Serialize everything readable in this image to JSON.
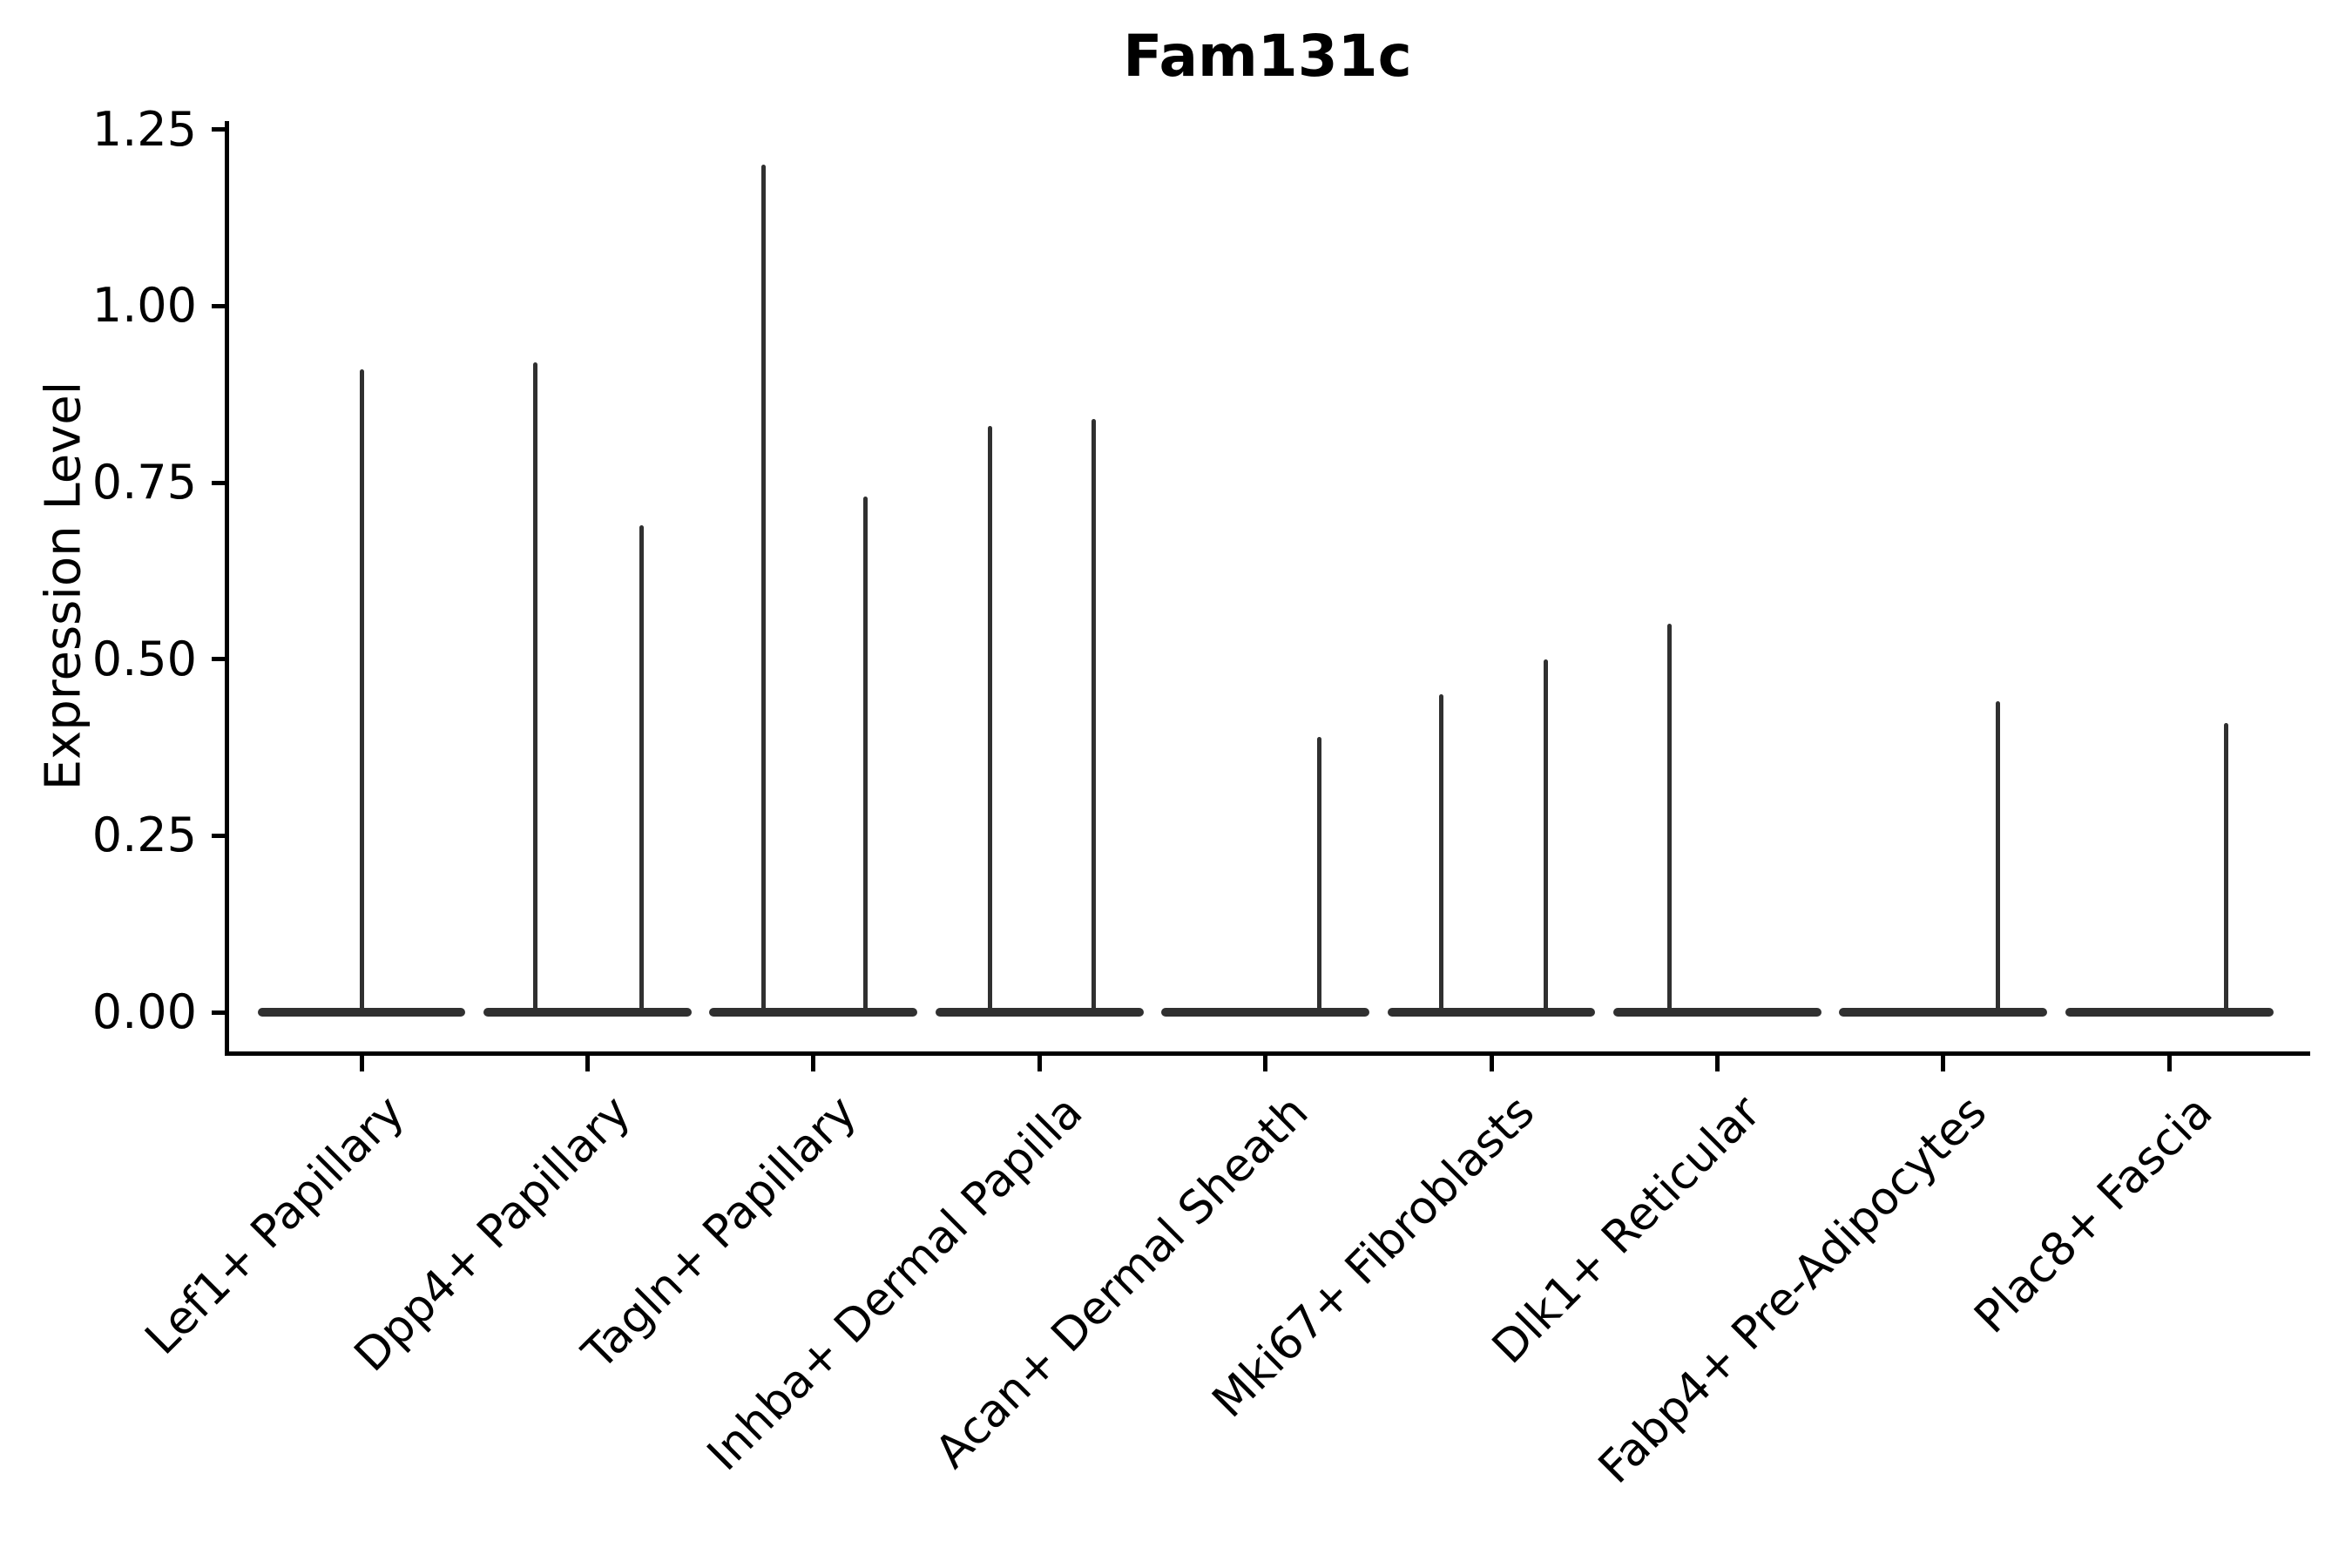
{
  "title": "Fam131c",
  "axes": {
    "ylabel": "Expression Level"
  },
  "chart_data": {
    "type": "violin",
    "title": "Fam131c",
    "xlabel": "",
    "ylabel": "Expression Level",
    "ylim": [
      -0.05,
      1.26
    ],
    "grid": false,
    "legend": "none",
    "yticks": [
      0,
      0.25,
      0.5,
      0.75,
      1.0,
      1.25
    ],
    "ytick_labels": [
      "0.00",
      "0.25",
      "0.50",
      "0.75",
      "1.00",
      "1.25"
    ],
    "categories": [
      "Lef1+ Papillary",
      "Dpp4+ Papillary",
      "Tagln+ Papillary",
      "Inhba+ Dermal Papilla",
      "Acan+ Dermal Sheath",
      "Mki67+ Fibroblasts",
      "Dlk1+ Reticular",
      "Fabp4+ Pre-Adipocytes",
      "Plac8+ Fascia"
    ],
    "description": "Each category shows a flattened violin body at expression 0 plus thin vertical spikes reaching the max expression of rare expressing cells; spike offset is in category-axis units relative to the category center.",
    "body_halfwidth_units": 0.46,
    "baseline_value": 0,
    "violins": [
      {
        "category": "Lef1+ Papillary",
        "spikes": [
          {
            "offset": 0.0,
            "max": 0.91
          }
        ]
      },
      {
        "category": "Dpp4+ Papillary",
        "spikes": [
          {
            "offset": -0.23,
            "max": 0.92
          },
          {
            "offset": 0.24,
            "max": 0.69
          }
        ]
      },
      {
        "category": "Tagln+ Papillary",
        "spikes": [
          {
            "offset": -0.22,
            "max": 1.2
          },
          {
            "offset": 0.23,
            "max": 0.73
          }
        ]
      },
      {
        "category": "Inhba+ Dermal Papilla",
        "spikes": [
          {
            "offset": -0.22,
            "max": 0.83
          },
          {
            "offset": 0.24,
            "max": 0.84
          }
        ]
      },
      {
        "category": "Acan+ Dermal Sheath",
        "spikes": [
          {
            "offset": 0.24,
            "max": 0.39
          }
        ]
      },
      {
        "category": "Mki67+ Fibroblasts",
        "spikes": [
          {
            "offset": -0.22,
            "max": 0.45
          },
          {
            "offset": 0.24,
            "max": 0.5
          }
        ]
      },
      {
        "category": "Dlk1+ Reticular",
        "spikes": [
          {
            "offset": -0.21,
            "max": 0.55
          }
        ]
      },
      {
        "category": "Fabp4+ Pre-Adipocytes",
        "spikes": [
          {
            "offset": 0.24,
            "max": 0.44
          }
        ]
      },
      {
        "category": "Plac8+ Fascia",
        "spikes": [
          {
            "offset": 0.25,
            "max": 0.41
          }
        ]
      }
    ],
    "colors": {
      "violin": "#303030",
      "axis": "#000000",
      "background": "#ffffff"
    }
  }
}
